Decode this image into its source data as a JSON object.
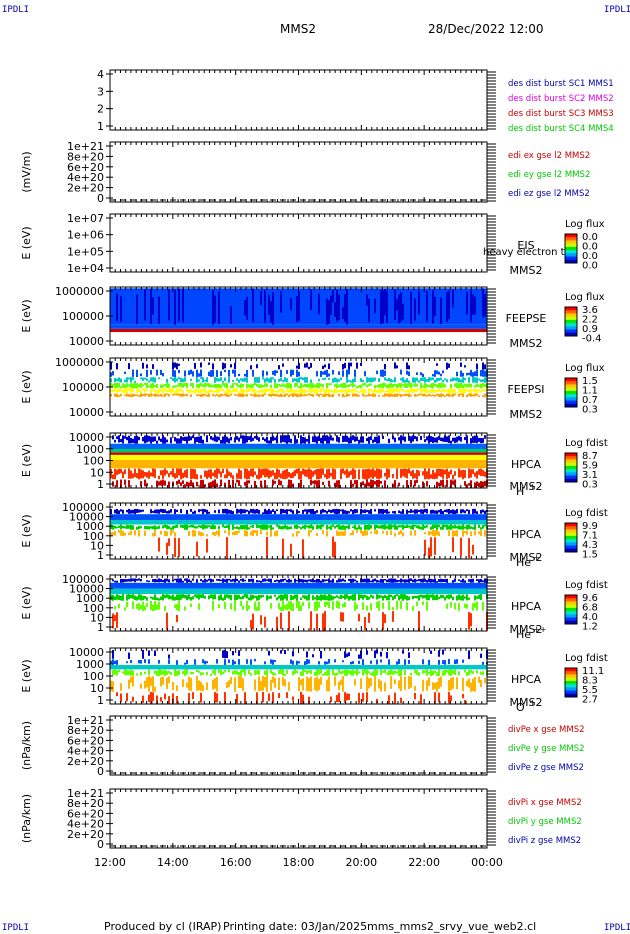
{
  "corners": {
    "top_left": "IPDLI",
    "top_right": "IPDLI",
    "bottom_left": "IPDLI",
    "bottom_right": "IPDLI"
  },
  "header": {
    "spacecraft": "MMS2",
    "datetime": "28/Dec/2022 12:00"
  },
  "footer": {
    "produced_by": "Produced by cl (IRAP)",
    "printing_date": "Printing date: 03/Jan/2025",
    "filename": "mms_mms2_srvy_vue_web2.cl"
  },
  "colors": {
    "dark_red": "#c80000",
    "red": "#ff0000",
    "orange": "#ff9600",
    "yellow": "#ffff00",
    "green": "#00d200",
    "cyan": "#00c8c8",
    "blue": "#0028ff",
    "dark_blue": "#0000a0",
    "magenta": "#e000e0"
  },
  "chart_data": {
    "type": "heatmap",
    "x_ticks": [
      "12:00",
      "14:00",
      "16:00",
      "18:00",
      "20:00",
      "22:00",
      "00:00"
    ],
    "panels": [
      {
        "id": "burst",
        "type": "line",
        "ylabel": "",
        "ticks": [
          "4",
          "3",
          "2",
          "1"
        ],
        "ylim": [
          0.5,
          4.5
        ],
        "labels": [
          {
            "text": "des dist burst SC1 MMS1",
            "color": "#0000aa"
          },
          {
            "text": "des dist burst SC2 MMS2",
            "color": "#e000e0"
          },
          {
            "text": "des dist burst SC3 MMS3",
            "color": "#c80000"
          },
          {
            "text": "des dist burst SC4 MMS4",
            "color": "#00c800"
          }
        ]
      },
      {
        "id": "edi",
        "type": "line",
        "ylabel": "(mV/m)",
        "ticks": [
          "1e+21",
          "8e+20",
          "6e+20",
          "4e+20",
          "2e+20",
          "0"
        ],
        "ylim": [
          0,
          1e+21
        ],
        "labels": [
          {
            "text": "edi ex gse l2 MMS2",
            "color": "#c80000"
          },
          {
            "text": "edi ey gse l2 MMS2",
            "color": "#00c800"
          },
          {
            "text": "edi ez gse l2 MMS2",
            "color": "#0000aa"
          }
        ]
      },
      {
        "id": "eis",
        "type": "heatmap",
        "ylabel": "E (eV)",
        "ticks": [
          "1e+07",
          "1e+06",
          "1e+05",
          "1e+04"
        ],
        "ylim": [
          10000,
          10000000
        ],
        "yscale": "log",
        "instrument": [
          "EIS",
          "MMS2"
        ],
        "overlay_text": "heavy electron to",
        "cb_title": "Log flux",
        "cb_labels": [
          "0.0",
          "0.0",
          "0.0",
          "0.0"
        ],
        "bands": []
      },
      {
        "id": "feepse",
        "type": "heatmap",
        "ylabel": "E (eV)",
        "ticks": [
          "1000000",
          "100000",
          "10000"
        ],
        "ylim": [
          10000,
          1000000
        ],
        "yscale": "log",
        "instrument": [
          "FEEPSE",
          "MMS2"
        ],
        "cb_title": "Log flux",
        "cb_labels": [
          "3.6",
          "2.2",
          "0.9",
          "-0.4"
        ],
        "bands": [
          {
            "elo": 28000,
            "ehi": 36000,
            "color": "#d20000",
            "density": 1.0
          },
          {
            "elo": 36000,
            "ehi": 50000,
            "color": "#0050ff",
            "density": 1.0
          },
          {
            "elo": 50000,
            "ehi": 900000,
            "color": "#0046ff",
            "density": 1.0
          },
          {
            "elo": 50000,
            "ehi": 900000,
            "color": "#0000c8",
            "density": 0.35
          }
        ]
      },
      {
        "id": "feepsi",
        "type": "heatmap",
        "ylabel": "E (eV)",
        "ticks": [
          "1000000",
          "100000",
          "10000"
        ],
        "ylim": [
          10000,
          1000000
        ],
        "yscale": "log",
        "instrument": [
          "FEEPSI",
          "MMS2"
        ],
        "cb_title": "Log flux",
        "cb_labels": [
          "1.5",
          "1.1",
          "0.7",
          "0.3"
        ],
        "bands": [
          {
            "elo": 45000,
            "ehi": 60000,
            "color": "#ffa000",
            "density": 0.9
          },
          {
            "elo": 60000,
            "ehi": 90000,
            "color": "#ffff00",
            "density": 0.95
          },
          {
            "elo": 90000,
            "ehi": 140000,
            "color": "#64ff00",
            "density": 0.9
          },
          {
            "elo": 140000,
            "ehi": 220000,
            "color": "#00c8c8",
            "density": 0.75
          },
          {
            "elo": 220000,
            "ehi": 400000,
            "color": "#0050ff",
            "density": 0.5
          },
          {
            "elo": 400000,
            "ehi": 700000,
            "color": "#0000b4",
            "density": 0.25
          }
        ]
      },
      {
        "id": "hpca_h",
        "type": "heatmap",
        "ylabel": "E (eV)",
        "ticks": [
          "10000",
          "1000",
          "100",
          "10",
          "1"
        ],
        "ylim": [
          1,
          30000
        ],
        "yscale": "log",
        "instrument": [
          "HPCA",
          "MMS2"
        ],
        "species": "H",
        "charge": "+",
        "cb_title": "Log fdist",
        "cb_labels": [
          "8.7",
          "5.9",
          "3.1",
          "0.3"
        ],
        "bands": [
          {
            "elo": 1,
            "ehi": 5,
            "color": "#c80000",
            "density": 0.6
          },
          {
            "elo": 5,
            "ehi": 40,
            "color": "#ff3200",
            "density": 0.9
          },
          {
            "elo": 40,
            "ehi": 200,
            "color": "#ffb400",
            "density": 1.0
          },
          {
            "elo": 200,
            "ehi": 500,
            "color": "#ffff00",
            "density": 1.0
          },
          {
            "elo": 500,
            "ehi": 800,
            "color": "#c80000",
            "density": 1.0
          },
          {
            "elo": 800,
            "ehi": 1500,
            "color": "#00c864",
            "density": 1.0
          },
          {
            "elo": 1500,
            "ehi": 4000,
            "color": "#0064ff",
            "density": 1.0
          },
          {
            "elo": 4000,
            "ehi": 20000,
            "color": "#0000c8",
            "density": 0.85
          }
        ]
      },
      {
        "id": "hpca_he",
        "type": "heatmap",
        "ylabel": "E (eV)",
        "ticks": [
          "100000",
          "10000",
          "1000",
          "100",
          "10",
          "1"
        ],
        "ylim": [
          1,
          100000
        ],
        "yscale": "log",
        "instrument": [
          "HPCA",
          "MMS2"
        ],
        "species": "He",
        "charge": "+",
        "cb_title": "Log fdist",
        "cb_labels": [
          "9.9",
          "7.1",
          "4.3",
          "1.5"
        ],
        "bands": [
          {
            "elo": 1,
            "ehi": 100,
            "color": "#ff3200",
            "density": 0.12
          },
          {
            "elo": 100,
            "ehi": 400,
            "color": "#ffb400",
            "density": 0.5
          },
          {
            "elo": 400,
            "ehi": 1200,
            "color": "#00d200",
            "density": 0.9
          },
          {
            "elo": 1200,
            "ehi": 3000,
            "color": "#00c8c8",
            "density": 1.0
          },
          {
            "elo": 3000,
            "ehi": 10000,
            "color": "#0050ff",
            "density": 1.0
          },
          {
            "elo": 10000,
            "ehi": 30000,
            "color": "#0000c8",
            "density": 0.8
          }
        ]
      },
      {
        "id": "hpca_he2",
        "type": "heatmap",
        "ylabel": "E (eV)",
        "ticks": [
          "100000",
          "10000",
          "1000",
          "100",
          "10",
          "1"
        ],
        "ylim": [
          1,
          100000
        ],
        "yscale": "log",
        "instrument": [
          "HPCA",
          "MMS2"
        ],
        "species": "He",
        "charge": "++",
        "cb_title": "Log fdist",
        "cb_labels": [
          "9.6",
          "6.8",
          "4.0",
          "1.2"
        ],
        "bands": [
          {
            "elo": 1,
            "ehi": 60,
            "color": "#ff3200",
            "density": 0.12
          },
          {
            "elo": 60,
            "ehi": 500,
            "color": "#64ff00",
            "density": 0.45
          },
          {
            "elo": 500,
            "ehi": 2000,
            "color": "#00d200",
            "density": 0.9
          },
          {
            "elo": 2000,
            "ehi": 6000,
            "color": "#00c8c8",
            "density": 1.0
          },
          {
            "elo": 6000,
            "ehi": 20000,
            "color": "#0050ff",
            "density": 1.0
          },
          {
            "elo": 20000,
            "ehi": 50000,
            "color": "#0000c8",
            "density": 0.9
          }
        ]
      },
      {
        "id": "hpca_o",
        "type": "heatmap",
        "ylabel": "E (eV)",
        "ticks": [
          "10000",
          "1000",
          "100",
          "10",
          "1"
        ],
        "ylim": [
          1,
          40000
        ],
        "yscale": "log",
        "instrument": [
          "HPCA",
          "MMS2"
        ],
        "species": "O",
        "charge": "+",
        "cb_title": "Log fdist",
        "cb_labels": [
          "11.1",
          "8.3",
          "5.5",
          "2.7"
        ],
        "bands": [
          {
            "elo": 1,
            "ehi": 10,
            "color": "#ff3200",
            "density": 0.3
          },
          {
            "elo": 10,
            "ehi": 200,
            "color": "#ffb400",
            "density": 0.55
          },
          {
            "elo": 200,
            "ehi": 700,
            "color": "#64ff00",
            "density": 0.8
          },
          {
            "elo": 700,
            "ehi": 1600,
            "color": "#00c8c8",
            "density": 1.0
          },
          {
            "elo": 1600,
            "ehi": 5000,
            "color": "#0050ff",
            "density": 0.35
          },
          {
            "elo": 5000,
            "ehi": 30000,
            "color": "#0000c8",
            "density": 0.15
          }
        ]
      },
      {
        "id": "divpe",
        "type": "line",
        "ylabel": "(nPa/km)",
        "ticks": [
          "1e+21",
          "8e+20",
          "6e+20",
          "4e+20",
          "2e+20",
          "0"
        ],
        "ylim": [
          0,
          1e+21
        ],
        "labels": [
          {
            "text": "divPe x gse MMS2",
            "color": "#c80000"
          },
          {
            "text": "divPe y gse MMS2",
            "color": "#00c800"
          },
          {
            "text": "divPe z gse MMS2",
            "color": "#0000aa"
          }
        ]
      },
      {
        "id": "divpi",
        "type": "line",
        "ylabel": "(nPa/km)",
        "ticks": [
          "1e+21",
          "8e+20",
          "6e+20",
          "4e+20",
          "2e+20",
          "0"
        ],
        "ylim": [
          0,
          1e+21
        ],
        "labels": [
          {
            "text": "divPi x gse MMS2",
            "color": "#c80000"
          },
          {
            "text": "divPi y gse MMS2",
            "color": "#00c800"
          },
          {
            "text": "divPi z gse MMS2",
            "color": "#0000aa"
          }
        ]
      }
    ]
  }
}
